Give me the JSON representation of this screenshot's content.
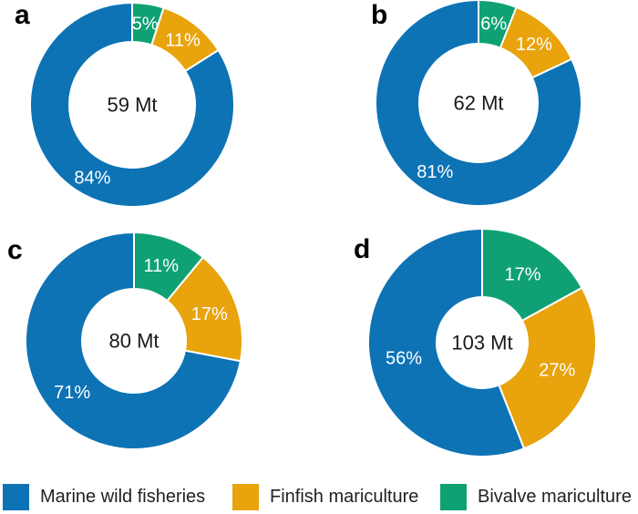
{
  "colors": {
    "marine_wild_fisheries": "#0d73b5",
    "finfish_mariculture": "#e8a30d",
    "bivalve_mariculture": "#0fa173",
    "slice_label_text": "#ffffff",
    "center_label_text": "#1a1a1a",
    "panel_letter_text": "#000000",
    "legend_text": "#231f20",
    "background": "#ffffff"
  },
  "legend": {
    "position": "bottom",
    "items": [
      {
        "label": "Marine wild fisheries",
        "color_key": "marine_wild_fisheries"
      },
      {
        "label": "Finfish mariculture",
        "color_key": "finfish_mariculture"
      },
      {
        "label": "Bivalve mariculture",
        "color_key": "bivalve_mariculture"
      }
    ]
  },
  "chart_data": {
    "type": "pie",
    "subtype": "donut",
    "start_angle_deg": 0,
    "direction": "clockwise",
    "legend_position": "bottom",
    "charts": [
      {
        "panel": "a",
        "center_label": "59 Mt",
        "slices": [
          {
            "name": "Bivalve mariculture",
            "color_key": "bivalve_mariculture",
            "percent": 5,
            "label": "5%"
          },
          {
            "name": "Finfish mariculture",
            "color_key": "finfish_mariculture",
            "percent": 11,
            "label": "11%"
          },
          {
            "name": "Marine wild fisheries",
            "color_key": "marine_wild_fisheries",
            "percent": 84,
            "label": "84%"
          }
        ]
      },
      {
        "panel": "b",
        "center_label": "62 Mt",
        "slices": [
          {
            "name": "Bivalve mariculture",
            "color_key": "bivalve_mariculture",
            "percent": 6,
            "label": "6%"
          },
          {
            "name": "Finfish mariculture",
            "color_key": "finfish_mariculture",
            "percent": 12,
            "label": "12%"
          },
          {
            "name": "Marine wild fisheries",
            "color_key": "marine_wild_fisheries",
            "percent": 81,
            "label": "81%"
          }
        ]
      },
      {
        "panel": "c",
        "center_label": "80 Mt",
        "slices": [
          {
            "name": "Bivalve mariculture",
            "color_key": "bivalve_mariculture",
            "percent": 11,
            "label": "11%"
          },
          {
            "name": "Finfish mariculture",
            "color_key": "finfish_mariculture",
            "percent": 17,
            "label": "17%"
          },
          {
            "name": "Marine wild fisheries",
            "color_key": "marine_wild_fisheries",
            "percent": 71,
            "label": "71%"
          }
        ]
      },
      {
        "panel": "d",
        "center_label": "103 Mt",
        "slices": [
          {
            "name": "Bivalve mariculture",
            "color_key": "bivalve_mariculture",
            "percent": 17,
            "label": "17%"
          },
          {
            "name": "Finfish mariculture",
            "color_key": "finfish_mariculture",
            "percent": 27,
            "label": "27%"
          },
          {
            "name": "Marine wild fisheries",
            "color_key": "marine_wild_fisheries",
            "percent": 56,
            "label": "56%"
          }
        ]
      }
    ]
  }
}
